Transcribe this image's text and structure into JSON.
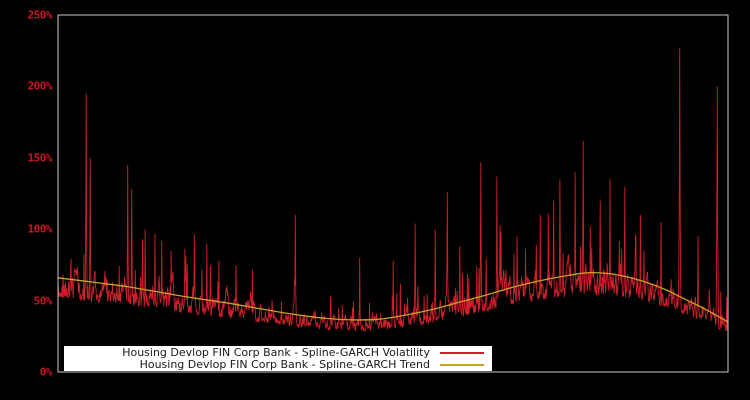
{
  "figure": {
    "background": "#000000",
    "plot_border_color": "#c8c8c8",
    "axis_tick_color": "#cc1626"
  },
  "legend": {
    "background": "#ffffff",
    "position": "bottom-left-inside",
    "entries": [
      {
        "label": "Housing Devlop FIN Corp Bank - Spline-GARCH Volatility",
        "color": "#cd1f2b"
      },
      {
        "label": "Housing Devlop FIN Corp Bank - Spline-GARCH Trend",
        "color": "#c9a227"
      }
    ]
  },
  "chart_data": {
    "type": "line",
    "title": "",
    "xlabel": "",
    "ylabel": "",
    "ylim": [
      0,
      250
    ],
    "grid": false,
    "x_ticks": [],
    "y_ticks": [
      {
        "value": 0,
        "label": "0%"
      },
      {
        "value": 50,
        "label": "50%"
      },
      {
        "value": 100,
        "label": "100%"
      },
      {
        "value": 150,
        "label": "150%"
      },
      {
        "value": 200,
        "label": "200%"
      },
      {
        "value": 250,
        "label": "250%"
      }
    ],
    "legend_position": "bottom",
    "series": [
      {
        "name": "Housing Devlop FIN Corp Bank - Spline-GARCH Volatility",
        "color": "#cd1f2b",
        "style": "noisy-line",
        "unit": "percent",
        "generator": {
          "n_points": 1500,
          "seed": 42,
          "band_base": 0.78,
          "band_amp": 0.36,
          "ar_coeff": 0.86,
          "burst_prob": 0.05,
          "burst_min": 1.15,
          "burst_max": 1.75,
          "value_min": 20,
          "value_max": 250
        },
        "spikes_frac_pct": [
          [
            0.042,
            195
          ],
          [
            0.048,
            150
          ],
          [
            0.104,
            145
          ],
          [
            0.11,
            128
          ],
          [
            0.13,
            100
          ],
          [
            0.145,
            97
          ],
          [
            0.155,
            92
          ],
          [
            0.222,
            90
          ],
          [
            0.24,
            78
          ],
          [
            0.29,
            72
          ],
          [
            0.354,
            110
          ],
          [
            0.45,
            80
          ],
          [
            0.5,
            78
          ],
          [
            0.533,
            104
          ],
          [
            0.563,
            100
          ],
          [
            0.581,
            126
          ],
          [
            0.6,
            88
          ],
          [
            0.631,
            147
          ],
          [
            0.655,
            137
          ],
          [
            0.685,
            95
          ],
          [
            0.72,
            110
          ],
          [
            0.74,
            120
          ],
          [
            0.749,
            135
          ],
          [
            0.772,
            140
          ],
          [
            0.784,
            162
          ],
          [
            0.809,
            120
          ],
          [
            0.824,
            135
          ],
          [
            0.846,
            130
          ],
          [
            0.869,
            110
          ],
          [
            0.9,
            105
          ],
          [
            0.928,
            227
          ],
          [
            0.955,
            95
          ],
          [
            0.984,
            200
          ]
        ]
      },
      {
        "name": "Housing Devlop FIN Corp Bank - Spline-GARCH Trend",
        "color": "#c9a227",
        "style": "smooth-line",
        "unit": "percent",
        "points_frac_pct": [
          [
            0.0,
            66
          ],
          [
            0.05,
            63
          ],
          [
            0.1,
            60
          ],
          [
            0.15,
            56
          ],
          [
            0.2,
            52
          ],
          [
            0.25,
            48.5
          ],
          [
            0.3,
            44.5
          ],
          [
            0.35,
            40.5
          ],
          [
            0.4,
            37.5
          ],
          [
            0.44,
            36.5
          ],
          [
            0.48,
            37
          ],
          [
            0.52,
            40
          ],
          [
            0.56,
            44
          ],
          [
            0.6,
            49
          ],
          [
            0.64,
            54
          ],
          [
            0.68,
            59.5
          ],
          [
            0.72,
            64
          ],
          [
            0.76,
            67.5
          ],
          [
            0.79,
            69.5
          ],
          [
            0.82,
            69
          ],
          [
            0.85,
            66.5
          ],
          [
            0.88,
            62.5
          ],
          [
            0.91,
            57
          ],
          [
            0.94,
            50
          ],
          [
            0.97,
            43
          ],
          [
            1.0,
            35
          ]
        ]
      }
    ]
  }
}
